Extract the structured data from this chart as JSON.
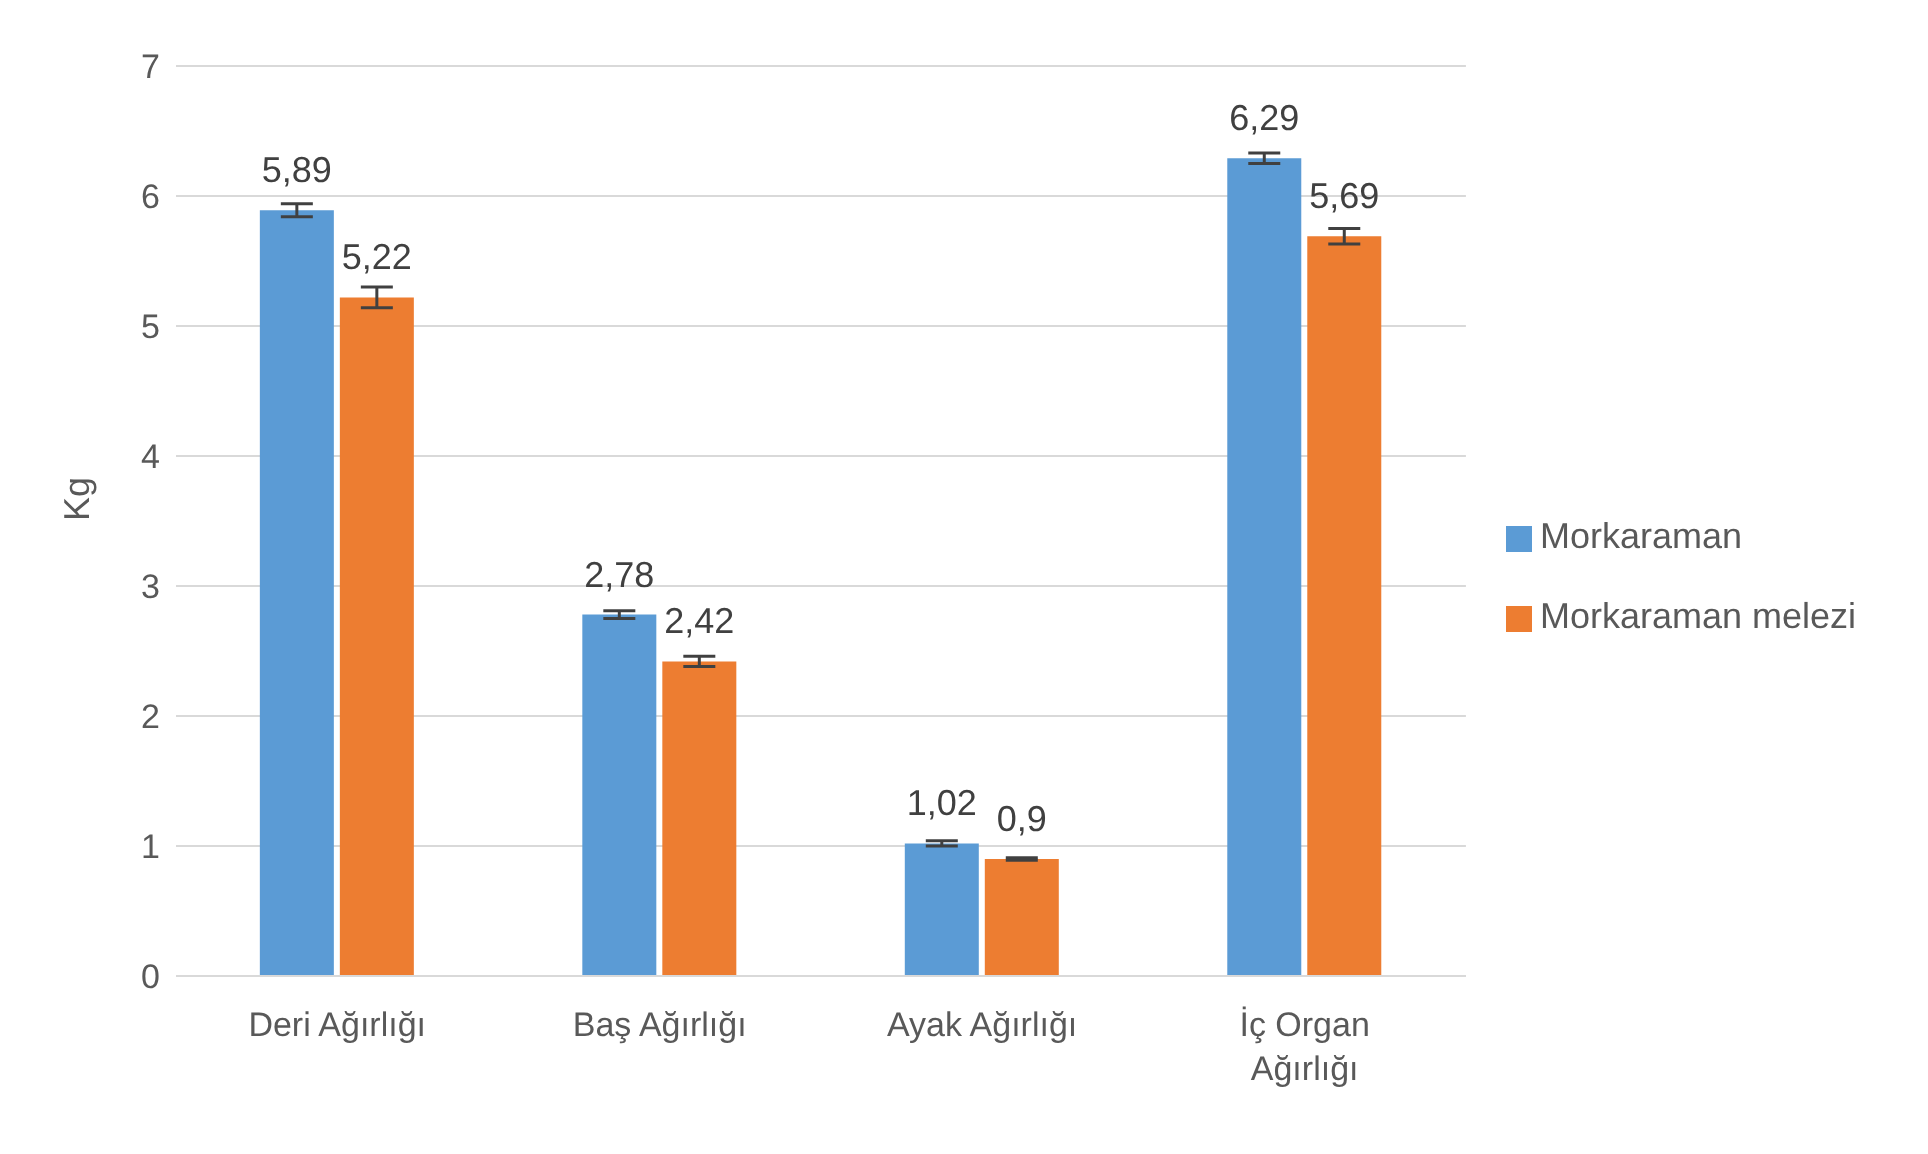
{
  "chart_data": {
    "type": "bar",
    "ylabel": "Kg",
    "categories": [
      "Deri Ağırlığı",
      "Baş Ağırlığı",
      "Ayak Ağırlığı",
      "İç Organ Ağırlığı"
    ],
    "series": [
      {
        "name": "Morkaraman",
        "color": "#5b9bd5",
        "values": [
          5.89,
          2.78,
          1.02,
          6.29
        ],
        "errors": [
          0.05,
          0.03,
          0.02,
          0.04
        ],
        "value_labels": [
          "5,89",
          "2,78",
          "1,02",
          "6,29"
        ]
      },
      {
        "name": "Morkaraman melezi",
        "color": "#ed7d31",
        "values": [
          5.22,
          2.42,
          0.9,
          5.69
        ],
        "errors": [
          0.08,
          0.04,
          0.01,
          0.06
        ],
        "value_labels": [
          "5,22",
          "2,42",
          "0,9",
          "5,69"
        ]
      }
    ],
    "ylim": [
      0,
      7
    ],
    "yticks": [
      0,
      1,
      2,
      3,
      4,
      5,
      6,
      7
    ],
    "grid": "y",
    "legend": "right"
  }
}
